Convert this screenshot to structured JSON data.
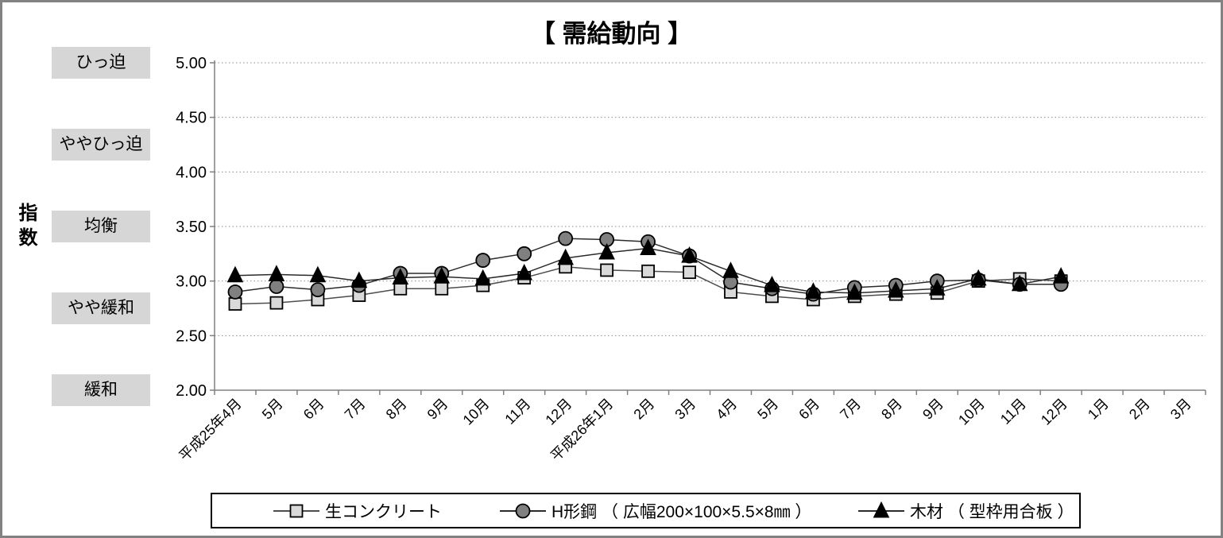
{
  "window": {
    "background": "#ffffff",
    "border_color": "#828282"
  },
  "chart_data": {
    "type": "line",
    "title": "【 需給動向 】",
    "y_axis_title": "指数",
    "ylim": [
      2.0,
      5.0
    ],
    "ytick_step": 0.5,
    "ytick_labels": [
      "5.00",
      "4.50",
      "4.00",
      "3.50",
      "3.00",
      "2.50",
      "2.00"
    ],
    "zone_labels": [
      {
        "label": "ひっ迫",
        "value": 5.0
      },
      {
        "label": "ややひっ迫",
        "value": 4.25
      },
      {
        "label": "均衡",
        "value": 3.5
      },
      {
        "label": "やや緩和",
        "value": 2.75
      },
      {
        "label": "緩和",
        "value": 2.0
      }
    ],
    "grid": "dotted-horizontal",
    "legend_position": "bottom",
    "categories": [
      "平成25年4月",
      "5月",
      "6月",
      "7月",
      "8月",
      "9月",
      "10月",
      "11月",
      "12月",
      "平成26年1月",
      "2月",
      "3月",
      "4月",
      "5月",
      "6月",
      "7月",
      "8月",
      "9月",
      "10月",
      "11月",
      "12月",
      "1月",
      "2月",
      "3月"
    ],
    "series": [
      {
        "name": "生コンクリート",
        "marker": "square",
        "marker_fill": "#d9d9d9",
        "line_color": "#4d4d4d",
        "values": [
          2.79,
          2.8,
          2.83,
          2.87,
          2.93,
          2.93,
          2.96,
          3.03,
          3.13,
          3.1,
          3.09,
          3.08,
          2.9,
          2.86,
          2.83,
          2.86,
          2.88,
          2.89,
          3.0,
          3.02,
          3.0,
          null,
          null,
          null
        ]
      },
      {
        "name": "H形鋼 （ 広幅200×100×5.5×8㎜ ）",
        "marker": "circle",
        "marker_fill": "#808080",
        "line_color": "#2b2b2b",
        "values": [
          2.9,
          2.95,
          2.92,
          2.96,
          3.07,
          3.07,
          3.19,
          3.25,
          3.39,
          3.38,
          3.36,
          3.23,
          2.99,
          2.93,
          2.88,
          2.94,
          2.96,
          3.0,
          3.01,
          2.97,
          2.97,
          null,
          null,
          null
        ]
      },
      {
        "name": "木材 （ 型枠用合板 ）",
        "marker": "triangle",
        "marker_fill": "#000000",
        "line_color": "#2b2b2b",
        "values": [
          3.05,
          3.06,
          3.05,
          3.0,
          3.03,
          3.04,
          3.02,
          3.07,
          3.21,
          3.26,
          3.3,
          3.23,
          3.09,
          2.96,
          2.9,
          2.89,
          2.91,
          2.93,
          3.02,
          2.97,
          3.04,
          null,
          null,
          null
        ]
      }
    ]
  }
}
